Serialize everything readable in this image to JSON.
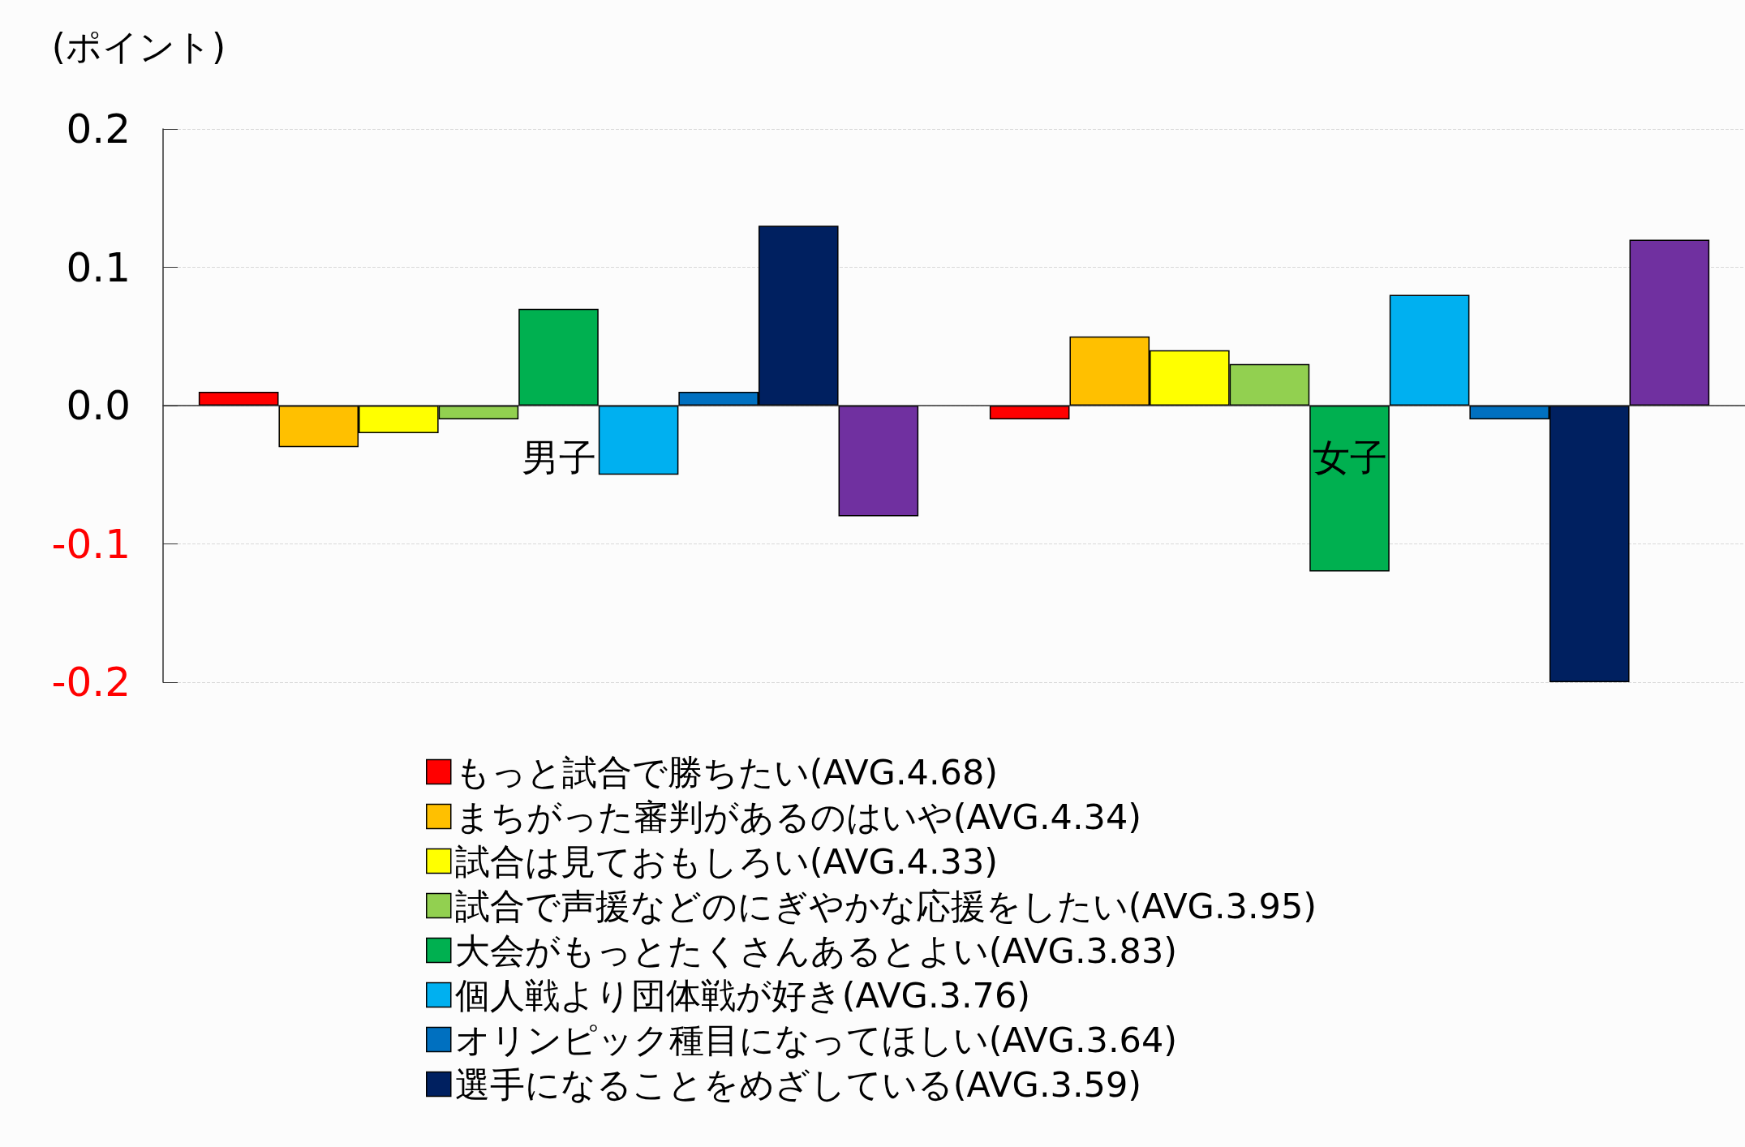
{
  "chart_data": {
    "type": "bar",
    "ylabel": "(ポイント)",
    "categories": [
      "男子",
      "女子"
    ],
    "series": [
      {
        "name": "もっと試合で勝ちたい(AVG.4.68)",
        "color": "#ff0000",
        "values": [
          0.01,
          -0.01
        ]
      },
      {
        "name": "まちがった審判があるのはいや(AVG.4.34)",
        "color": "#ffc000",
        "values": [
          -0.03,
          0.05
        ]
      },
      {
        "name": "試合は見ておもしろい(AVG.4.33)",
        "color": "#ffff00",
        "values": [
          -0.02,
          0.04
        ]
      },
      {
        "name": "試合で声援などのにぎやかな応援をしたい(AVG.3.95)",
        "color": "#92d050",
        "values": [
          -0.01,
          0.03
        ]
      },
      {
        "name": "大会がもっとたくさんあるとよい(AVG.3.83)",
        "color": "#00b050",
        "values": [
          0.07,
          -0.12
        ]
      },
      {
        "name": "個人戦より団体戦が好き(AVG.3.76)",
        "color": "#00b0f0",
        "values": [
          -0.05,
          0.08
        ]
      },
      {
        "name": "オリンピック種目になってほしい(AVG.3.64)",
        "color": "#0070c0",
        "values": [
          0.01,
          -0.01
        ]
      },
      {
        "name": "選手になることをめざしている(AVG.3.59)",
        "color": "#002060",
        "values": [
          0.13,
          -0.2
        ]
      },
      {
        "color": "#7030a0",
        "values": [
          -0.08,
          0.12
        ]
      }
    ],
    "ylim": [
      -0.2,
      0.2
    ],
    "yticks": [
      {
        "value": -0.2,
        "label": "-0.2"
      },
      {
        "value": -0.1,
        "label": "-0.1"
      },
      {
        "value": 0,
        "label": "0.0"
      },
      {
        "value": 0.1,
        "label": "0.1"
      },
      {
        "value": 0.2,
        "label": "0.2"
      }
    ],
    "grid": "y",
    "legend": "bottom"
  }
}
